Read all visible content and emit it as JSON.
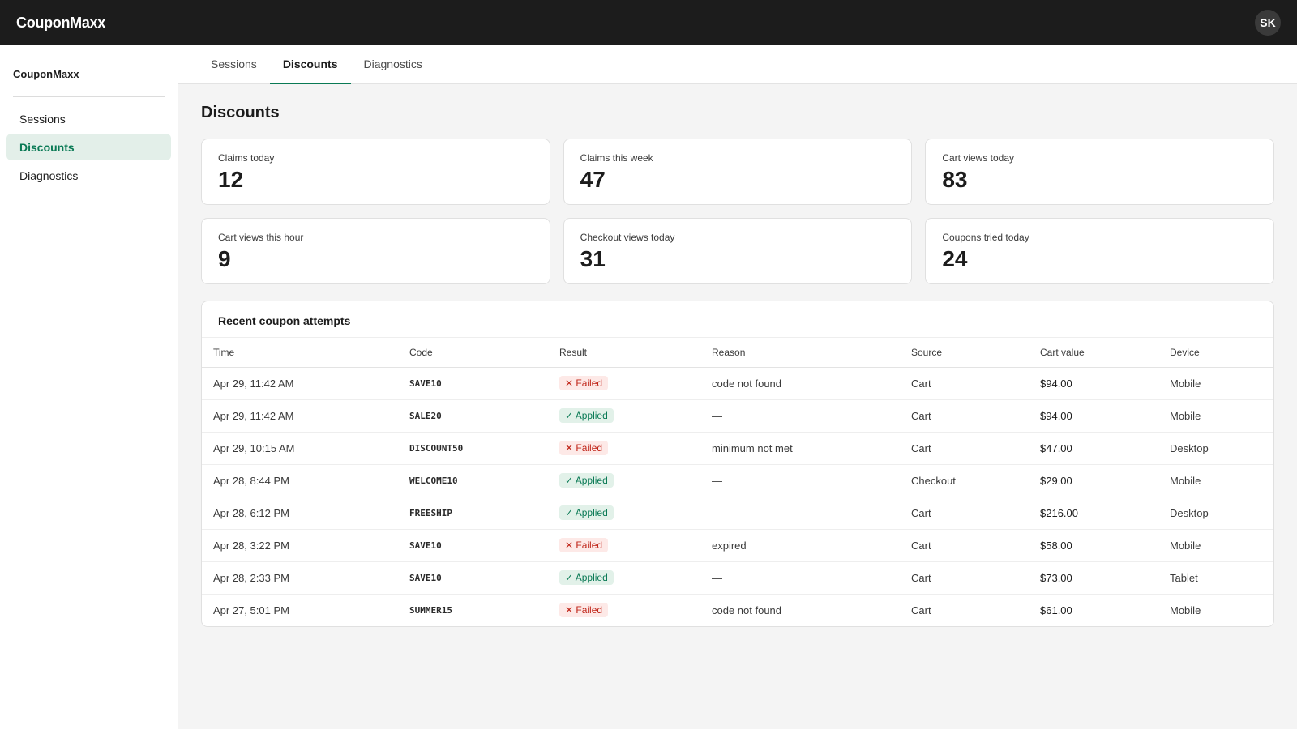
{
  "app": {
    "brand": "CouponMaxx",
    "avatar_initials": "SK"
  },
  "sidebar": {
    "title": "CouponMaxx",
    "items": [
      {
        "label": "Sessions",
        "active": false
      },
      {
        "label": "Discounts",
        "active": true
      },
      {
        "label": "Diagnostics",
        "active": false
      }
    ]
  },
  "tabs": [
    {
      "label": "Sessions",
      "active": false
    },
    {
      "label": "Discounts",
      "active": true
    },
    {
      "label": "Diagnostics",
      "active": false
    }
  ],
  "page": {
    "title": "Discounts"
  },
  "stats": [
    {
      "label": "Claims today",
      "value": "12"
    },
    {
      "label": "Claims this week",
      "value": "47"
    },
    {
      "label": "Cart views today",
      "value": "83"
    },
    {
      "label": "Cart views this hour",
      "value": "9"
    },
    {
      "label": "Checkout views today",
      "value": "31"
    },
    {
      "label": "Coupons tried today",
      "value": "24"
    }
  ],
  "table": {
    "title": "Recent coupon attempts",
    "headers": [
      "Time",
      "Code",
      "Result",
      "Reason",
      "Source",
      "Cart value",
      "Device"
    ],
    "rows": [
      {
        "time": "Apr 29, 11:42 AM",
        "code": "SAVE10",
        "result": "✕ Failed",
        "status": "failed",
        "reason": "code not found",
        "source": "Cart",
        "cart_value": "$94.00",
        "device": "Mobile"
      },
      {
        "time": "Apr 29, 11:42 AM",
        "code": "SALE20",
        "result": "✓ Applied",
        "status": "applied",
        "reason": "—",
        "source": "Cart",
        "cart_value": "$94.00",
        "device": "Mobile"
      },
      {
        "time": "Apr 29, 10:15 AM",
        "code": "DISCOUNT50",
        "result": "✕ Failed",
        "status": "failed",
        "reason": "minimum not met",
        "source": "Cart",
        "cart_value": "$47.00",
        "device": "Desktop"
      },
      {
        "time": "Apr 28, 8:44 PM",
        "code": "WELCOME10",
        "result": "✓ Applied",
        "status": "applied",
        "reason": "—",
        "source": "Checkout",
        "cart_value": "$29.00",
        "device": "Mobile"
      },
      {
        "time": "Apr 28, 6:12 PM",
        "code": "FREESHIP",
        "result": "✓ Applied",
        "status": "applied",
        "reason": "—",
        "source": "Cart",
        "cart_value": "$216.00",
        "device": "Desktop"
      },
      {
        "time": "Apr 28, 3:22 PM",
        "code": "SAVE10",
        "result": "✕ Failed",
        "status": "failed",
        "reason": "expired",
        "source": "Cart",
        "cart_value": "$58.00",
        "device": "Mobile"
      },
      {
        "time": "Apr 28, 2:33 PM",
        "code": "SAVE10",
        "result": "✓ Applied",
        "status": "applied",
        "reason": "—",
        "source": "Cart",
        "cart_value": "$73.00",
        "device": "Tablet"
      },
      {
        "time": "Apr 27, 5:01 PM",
        "code": "SUMMER15",
        "result": "✕ Failed",
        "status": "failed",
        "reason": "code not found",
        "source": "Cart",
        "cart_value": "$61.00",
        "device": "Mobile"
      }
    ]
  },
  "colors": {
    "accent": "#0a7a55",
    "failed": "#c0261a",
    "topbar": "#1c1c1c"
  }
}
